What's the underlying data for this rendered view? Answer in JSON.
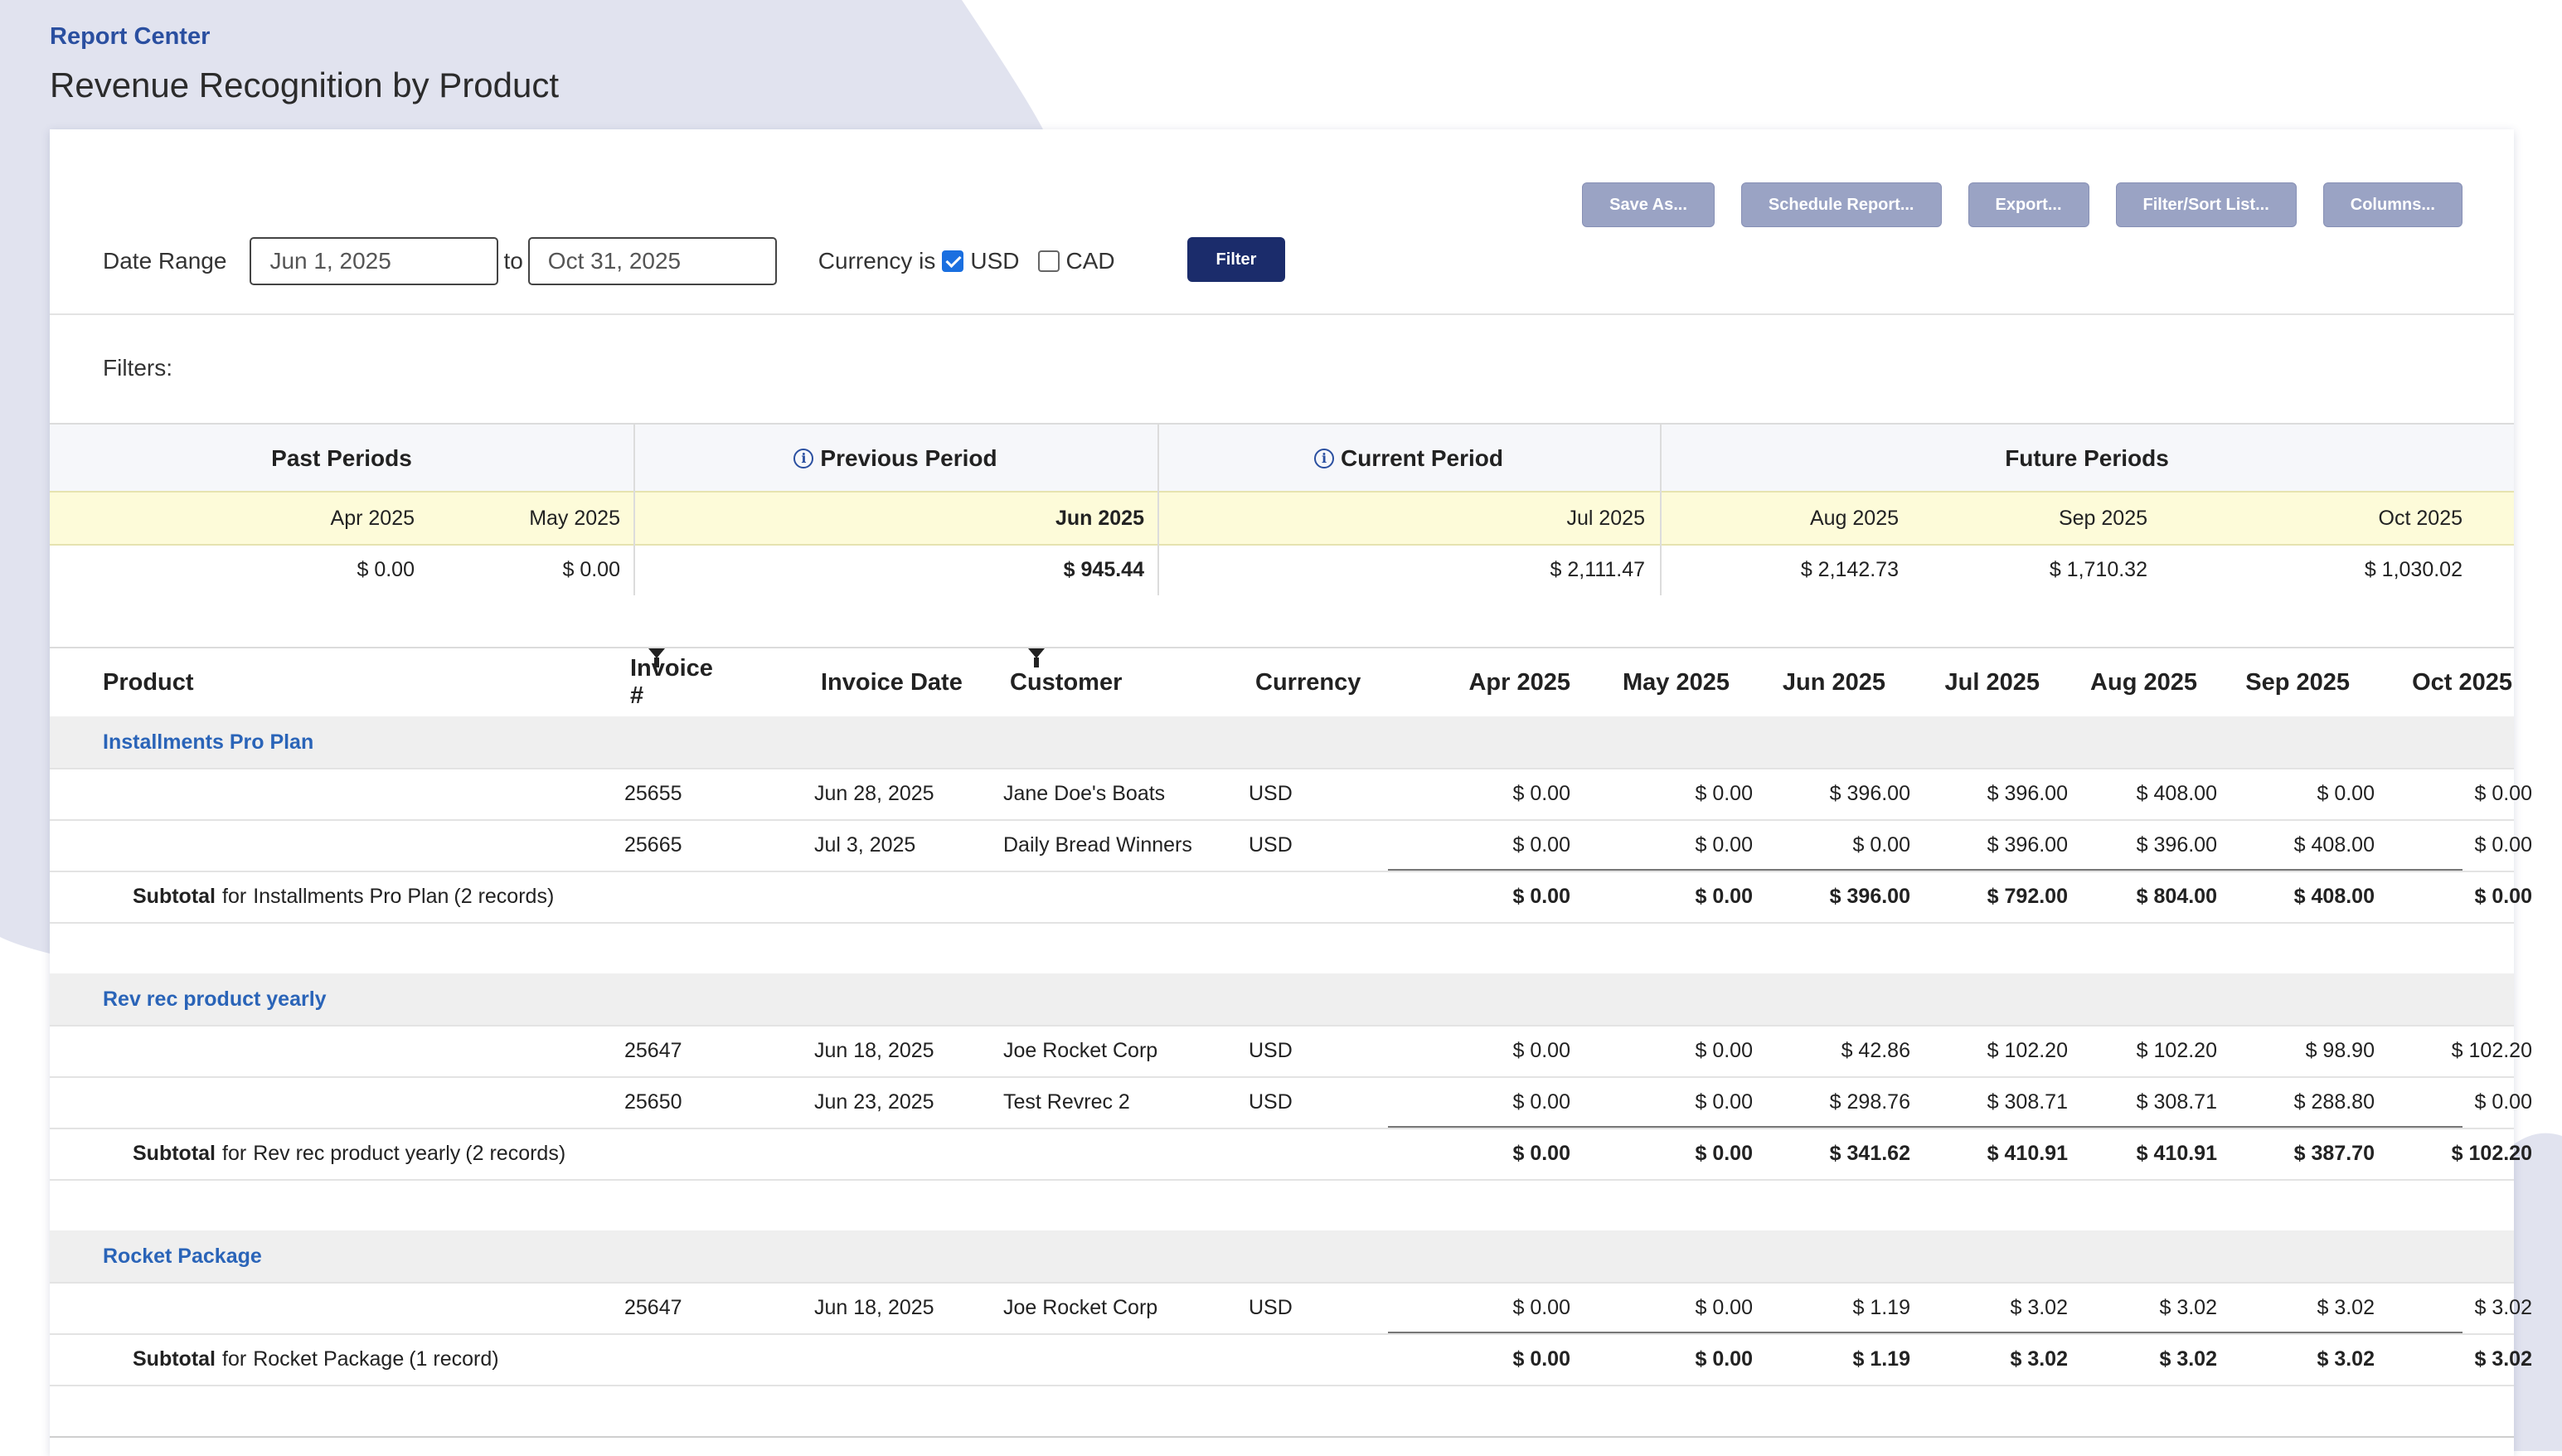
{
  "header": {
    "breadcrumb": "Report Center",
    "title": "Revenue Recognition by Product"
  },
  "toolbar": {
    "buttons": [
      "Save As...",
      "Schedule Report...",
      "Export...",
      "Filter/Sort List...",
      "Columns..."
    ]
  },
  "filter_bar": {
    "date_range_label": "Date Range",
    "start_date": "Jun 1, 2025",
    "to_label": "to",
    "end_date": "Oct 31, 2025",
    "currency_label": "Currency is",
    "currencies": [
      {
        "code": "USD",
        "checked": true
      },
      {
        "code": "CAD",
        "checked": false
      }
    ],
    "filter_button": "Filter",
    "filters_label": "Filters:"
  },
  "summary": {
    "groups": {
      "past": "Past Periods",
      "previous": "Previous Period",
      "current": "Current Period",
      "future": "Future Periods"
    },
    "months": [
      "Apr 2025",
      "May 2025",
      "Jun 2025",
      "Jul 2025",
      "Aug 2025",
      "Sep 2025",
      "Oct 2025"
    ],
    "values": [
      "$ 0.00",
      "$ 0.00",
      "$ 945.44",
      "$ 2,111.47",
      "$ 2,142.73",
      "$ 1,710.32",
      "$ 1,030.02"
    ]
  },
  "table": {
    "columns": [
      "Product",
      "Invoice #",
      "Invoice Date",
      "Customer",
      "Currency",
      "Apr 2025",
      "May 2025",
      "Jun 2025",
      "Jul 2025",
      "Aug 2025",
      "Sep 2025",
      "Oct 2025"
    ],
    "groups": [
      {
        "name": "Installments Pro Plan",
        "rows": [
          {
            "invoice": "25655",
            "date": "Jun 28, 2025",
            "customer": "Jane Doe's Boats",
            "currency": "USD",
            "values": [
              "$ 0.00",
              "$ 0.00",
              "$ 396.00",
              "$ 396.00",
              "$ 408.00",
              "$ 0.00",
              "$ 0.00"
            ]
          },
          {
            "invoice": "25665",
            "date": "Jul 3, 2025",
            "customer": "Daily Bread Winners",
            "currency": "USD",
            "values": [
              "$ 0.00",
              "$ 0.00",
              "$ 0.00",
              "$ 396.00",
              "$ 396.00",
              "$ 408.00",
              "$ 0.00"
            ]
          }
        ],
        "subtotal": {
          "prefix": "Subtotal",
          "for": "for",
          "records": "(2 records)",
          "values": [
            "$ 0.00",
            "$ 0.00",
            "$ 396.00",
            "$ 792.00",
            "$ 804.00",
            "$ 408.00",
            "$ 0.00"
          ]
        }
      },
      {
        "name": "Rev rec product yearly",
        "rows": [
          {
            "invoice": "25647",
            "date": "Jun 18, 2025",
            "customer": "Joe Rocket Corp",
            "currency": "USD",
            "values": [
              "$ 0.00",
              "$ 0.00",
              "$ 42.86",
              "$ 102.20",
              "$ 102.20",
              "$ 98.90",
              "$ 102.20"
            ]
          },
          {
            "invoice": "25650",
            "date": "Jun 23, 2025",
            "customer": "Test Revrec 2",
            "currency": "USD",
            "values": [
              "$ 0.00",
              "$ 0.00",
              "$ 298.76",
              "$ 308.71",
              "$ 308.71",
              "$ 288.80",
              "$ 0.00"
            ]
          }
        ],
        "subtotal": {
          "prefix": "Subtotal",
          "for": "for",
          "records": "(2 records)",
          "values": [
            "$ 0.00",
            "$ 0.00",
            "$ 341.62",
            "$ 410.91",
            "$ 410.91",
            "$ 387.70",
            "$ 102.20"
          ]
        }
      },
      {
        "name": "Rocket Package",
        "rows": [
          {
            "invoice": "25647",
            "date": "Jun 18, 2025",
            "customer": "Joe Rocket Corp",
            "currency": "USD",
            "values": [
              "$ 0.00",
              "$ 0.00",
              "$ 1.19",
              "$ 3.02",
              "$ 3.02",
              "$ 3.02",
              "$ 3.02"
            ]
          }
        ],
        "subtotal": {
          "prefix": "Subtotal",
          "for": "for",
          "records": "(1 record)",
          "values": [
            "$ 0.00",
            "$ 0.00",
            "$ 1.19",
            "$ 3.02",
            "$ 3.02",
            "$ 3.02",
            "$ 3.02"
          ]
        }
      }
    ]
  },
  "colors": {
    "accent": "#1b2c6b",
    "link": "#2a64b8",
    "button_gray": "#9aa3c4",
    "highlight": "#fdfbd9"
  }
}
